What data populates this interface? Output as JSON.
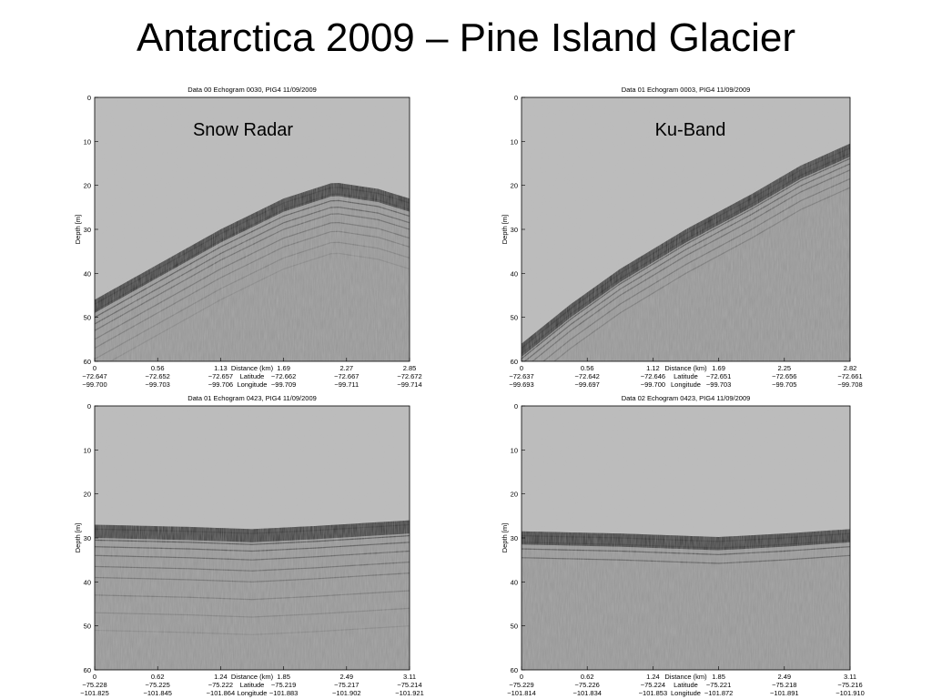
{
  "title": "Antarctica 2009 – Pine Island Glacier",
  "panels": [
    {
      "title": "Data 00 Echogram 0030, PIG4 11/09/2009",
      "label": "Snow Radar",
      "y_label": "Depth [m]",
      "yticks": [
        "0",
        "10",
        "20",
        "30",
        "40",
        "50",
        "60"
      ],
      "distance_label": "Distance (km)",
      "latitude_label": "Latitude",
      "longitude_label": "Longitude",
      "distance": [
        "0",
        "0.56",
        "1.13",
        "1.69",
        "2.27",
        "2.85"
      ],
      "latitude": [
        "−72.647",
        "−72.652",
        "−72.657",
        "−72.662",
        "−72.667",
        "−72.672"
      ],
      "longitude": [
        "−99.700",
        "−99.703",
        "−99.706",
        "−99.709",
        "−99.711",
        "−99.714"
      ]
    },
    {
      "title": "Data 01 Echogram 0003, PIG4 11/09/2009",
      "label": "Ku-Band",
      "y_label": "Depth [m]",
      "yticks": [
        "0",
        "10",
        "20",
        "30",
        "40",
        "50",
        "60"
      ],
      "distance_label": "Distance (km)",
      "latitude_label": "Latitude",
      "longitude_label": "Longitude",
      "distance": [
        "0",
        "0.56",
        "1.12",
        "1.69",
        "2.25",
        "2.82"
      ],
      "latitude": [
        "−72.637",
        "−72.642",
        "−72.646",
        "−72.651",
        "−72.656",
        "−72.661"
      ],
      "longitude": [
        "−99.693",
        "−99.697",
        "−99.700",
        "−99.703",
        "−99.705",
        "−99.708"
      ]
    },
    {
      "title": "Data 01 Echogram 0423, PIG4 11/09/2009",
      "y_label": "Depth [m]",
      "yticks": [
        "0",
        "10",
        "20",
        "30",
        "40",
        "50",
        "60"
      ],
      "distance_label": "Distance (km)",
      "latitude_label": "Latitude",
      "longitude_label": "Longitude",
      "distance": [
        "0",
        "0.62",
        "1.24",
        "1.85",
        "2.49",
        "3.11"
      ],
      "latitude": [
        "−75.228",
        "−75.225",
        "−75.222",
        "−75.219",
        "−75.217",
        "−75.214"
      ],
      "longitude": [
        "−101.825",
        "−101.845",
        "−101.864",
        "−101.883",
        "−101.902",
        "−101.921"
      ]
    },
    {
      "title": "Data 02 Echogram 0423, PIG4 11/09/2009",
      "y_label": "Depth [m]",
      "yticks": [
        "0",
        "10",
        "20",
        "30",
        "40",
        "50",
        "60"
      ],
      "distance_label": "Distance (km)",
      "latitude_label": "Latitude",
      "longitude_label": "Longitude",
      "distance": [
        "0",
        "0.62",
        "1.24",
        "1.85",
        "2.49",
        "3.11"
      ],
      "latitude": [
        "−75.229",
        "−75.226",
        "−75.224",
        "−75.221",
        "−75.218",
        "−75.216"
      ],
      "longitude": [
        "−101.814",
        "−101.834",
        "−101.853",
        "−101.872",
        "−101.891",
        "−101.910"
      ]
    }
  ]
}
